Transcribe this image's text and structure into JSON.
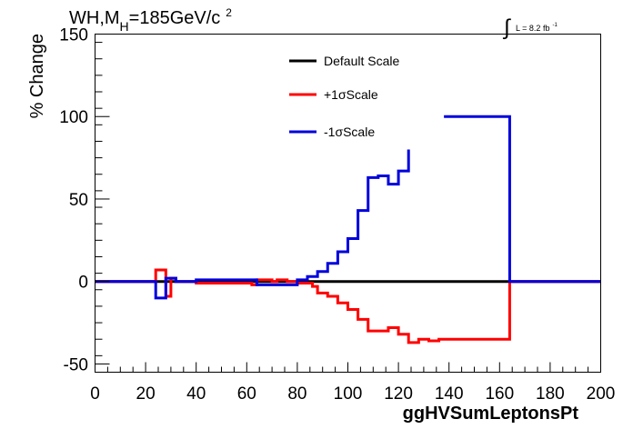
{
  "chart_data": {
    "type": "line",
    "title_main": "WH,M",
    "title_sub": "H",
    "title_rest": "=185GeV/c",
    "title_sup": "2",
    "lumi_symbol": "∫",
    "lumi_label": "L = 8.2 fb",
    "lumi_sup": "-1",
    "xlabel": "ggHVSumLeptonsPt",
    "ylabel": "% Change",
    "xlim": [
      0,
      200
    ],
    "ylim": [
      -55,
      150
    ],
    "xticks": [
      0,
      20,
      40,
      60,
      80,
      100,
      120,
      140,
      160,
      180,
      200
    ],
    "yticks": [
      -50,
      0,
      50,
      100,
      150
    ],
    "legend_position": "top-center",
    "series": [
      {
        "name": "Default Scale",
        "color": "#000000",
        "segments": [
          [
            [
              0,
              0
            ],
            [
              200,
              0
            ]
          ]
        ]
      },
      {
        "name": "+1σScale",
        "color": "#ff0000",
        "segments": [
          [
            [
              0,
              0
            ],
            [
              24,
              0
            ],
            [
              24,
              7
            ],
            [
              28,
              7
            ],
            [
              28,
              -9
            ],
            [
              30,
              -9
            ],
            [
              30,
              2
            ],
            [
              32,
              2
            ],
            [
              32,
              0
            ],
            [
              40,
              0
            ],
            [
              40,
              -1
            ],
            [
              62,
              -1
            ],
            [
              62,
              -2
            ],
            [
              64,
              -2
            ],
            [
              64,
              1
            ],
            [
              70,
              1
            ],
            [
              70,
              0
            ],
            [
              72,
              0
            ],
            [
              72,
              1
            ],
            [
              76,
              1
            ],
            [
              76,
              0
            ],
            [
              80,
              0
            ],
            [
              80,
              -1
            ],
            [
              86,
              -1
            ],
            [
              86,
              -3
            ],
            [
              88,
              -3
            ],
            [
              88,
              -7
            ],
            [
              92,
              -7
            ],
            [
              92,
              -9
            ],
            [
              96,
              -9
            ],
            [
              96,
              -13
            ],
            [
              100,
              -13
            ],
            [
              100,
              -17
            ],
            [
              104,
              -17
            ],
            [
              104,
              -23
            ],
            [
              108,
              -23
            ],
            [
              108,
              -30
            ],
            [
              112,
              -30
            ],
            [
              112,
              -30
            ],
            [
              116,
              -30
            ],
            [
              116,
              -28
            ],
            [
              120,
              -28
            ],
            [
              120,
              -32
            ],
            [
              124,
              -32
            ],
            [
              124,
              -37
            ],
            [
              128,
              -37
            ],
            [
              128,
              -35
            ],
            [
              132,
              -35
            ],
            [
              132,
              -36
            ],
            [
              136,
              -36
            ],
            [
              136,
              -35
            ],
            [
              164,
              -35
            ],
            [
              164,
              0
            ],
            [
              200,
              0
            ]
          ]
        ]
      },
      {
        "name": "-1σScale",
        "color": "#0000dd",
        "segments": [
          [
            [
              0,
              0
            ],
            [
              24,
              0
            ],
            [
              24,
              -10
            ],
            [
              28,
              -10
            ],
            [
              28,
              2
            ],
            [
              32,
              2
            ],
            [
              32,
              0
            ],
            [
              40,
              0
            ],
            [
              40,
              1
            ],
            [
              64,
              1
            ],
            [
              64,
              -2
            ],
            [
              72,
              -2
            ],
            [
              72,
              -2
            ],
            [
              80,
              -2
            ],
            [
              80,
              1
            ],
            [
              84,
              1
            ],
            [
              84,
              3
            ],
            [
              88,
              3
            ],
            [
              88,
              6
            ],
            [
              92,
              6
            ],
            [
              92,
              11
            ],
            [
              96,
              11
            ],
            [
              96,
              18
            ],
            [
              100,
              18
            ],
            [
              100,
              26
            ],
            [
              104,
              26
            ],
            [
              104,
              43
            ],
            [
              108,
              43
            ],
            [
              108,
              63
            ],
            [
              112,
              63
            ],
            [
              112,
              64
            ],
            [
              116,
              64
            ],
            [
              116,
              59
            ],
            [
              120,
              59
            ],
            [
              120,
              67
            ],
            [
              124,
              67
            ],
            [
              124,
              80
            ]
          ],
          [
            [
              138,
              100
            ],
            [
              164,
              100
            ],
            [
              164,
              0
            ],
            [
              200,
              0
            ]
          ]
        ]
      }
    ]
  }
}
